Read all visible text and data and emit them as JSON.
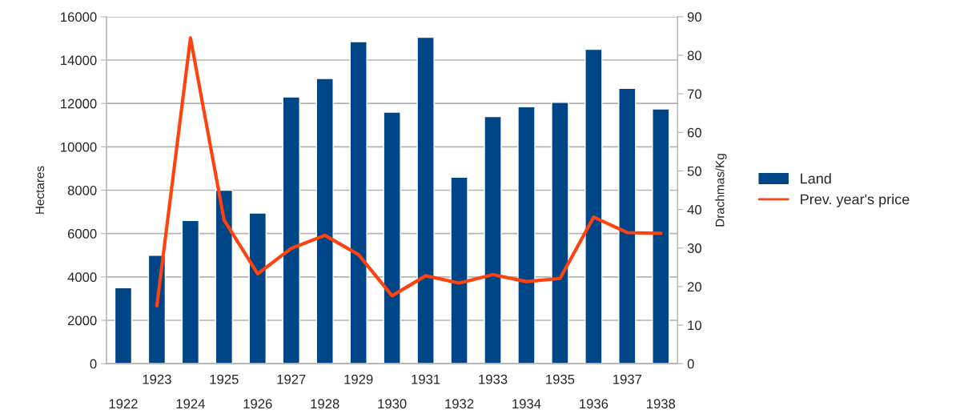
{
  "chart_data": {
    "type": "bar",
    "categories": [
      "1922",
      "1923",
      "1924",
      "1925",
      "1926",
      "1927",
      "1928",
      "1929",
      "1930",
      "1931",
      "1932",
      "1933",
      "1934",
      "1935",
      "1936",
      "1937",
      "1938"
    ],
    "series": [
      {
        "name": "Land",
        "color": "#004586",
        "values": [
          3500,
          5000,
          6600,
          8000,
          6950,
          12300,
          13150,
          14850,
          11600,
          15050,
          8600,
          11400,
          11850,
          12050,
          14500,
          12700,
          11750
        ]
      },
      {
        "name": "Prev. year's price",
        "type": "line",
        "axis": "y2",
        "color": "#ff420e",
        "values": [
          null,
          15,
          84.5,
          37.3,
          23.3,
          29.9,
          33.3,
          28.3,
          17.6,
          22.8,
          20.9,
          23.1,
          21.3,
          22.1,
          38,
          34,
          33.8
        ]
      }
    ],
    "ylabel": "Hectares",
    "y2label": "Drachmas/Kg",
    "ylim": [
      0,
      16000
    ],
    "yticks": [
      0,
      2000,
      4000,
      6000,
      8000,
      10000,
      12000,
      14000,
      16000
    ],
    "y2lim": [
      0,
      90
    ],
    "y2ticks": [
      0,
      10,
      20,
      30,
      40,
      50,
      60,
      70,
      80,
      90
    ],
    "grid": "y",
    "legend": "right"
  }
}
